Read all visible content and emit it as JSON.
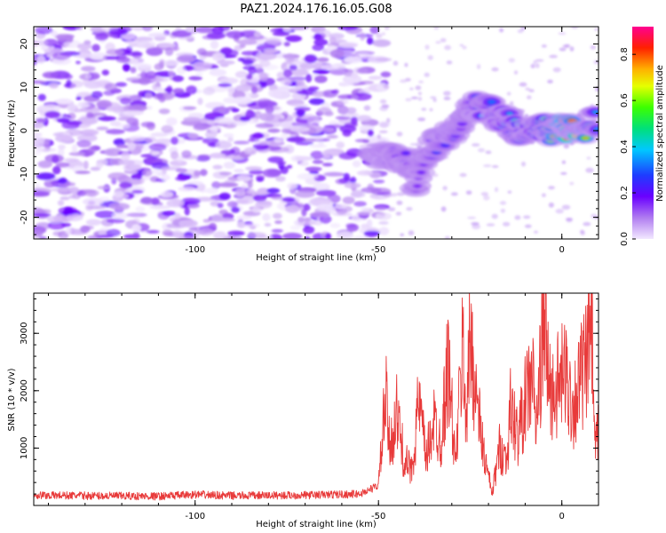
{
  "title": "PAZ1.2024.176.16.05.G08",
  "colors": {
    "snr_line": "#e83a3a",
    "spectrogram_low": "#e6d3ff",
    "spectrogram_mid": "#8a2be2",
    "spectrogram_high": "#ff0000"
  },
  "chart_data": [
    {
      "type": "heatmap",
      "title": "PAZ1.2024.176.16.05.G08",
      "xlabel": "Height of straight line (km)",
      "ylabel": "Frequency (Hz)",
      "xlim": [
        -144,
        10
      ],
      "ylim": [
        -25,
        24
      ],
      "xticks": [
        -100,
        -50,
        0
      ],
      "yticks": [
        -20,
        -10,
        0,
        10,
        20
      ],
      "colorbar": {
        "label": "Normalized spectral amplitude",
        "range": [
          0,
          0.92
        ],
        "ticks": [
          0.0,
          0.2,
          0.4,
          0.6,
          0.8
        ],
        "colormap": "rainbow (white-purple-blue-cyan-green-yellow-red-magenta)"
      },
      "features": {
        "noise_region_x": [
          -144,
          -50
        ],
        "signal_ridge": [
          {
            "x": -50,
            "y": -5,
            "amp": 0.12
          },
          {
            "x": -45,
            "y": -6,
            "amp": 0.2
          },
          {
            "x": -42,
            "y": -8,
            "amp": 0.22
          },
          {
            "x": -40,
            "y": -12,
            "amp": 0.15
          },
          {
            "x": -35,
            "y": -3,
            "amp": 0.25
          },
          {
            "x": -30,
            "y": -1,
            "amp": 0.28
          },
          {
            "x": -28,
            "y": 2,
            "amp": 0.2
          },
          {
            "x": -25,
            "y": 6,
            "amp": 0.25
          },
          {
            "x": -20,
            "y": 5,
            "amp": 0.4
          },
          {
            "x": -15,
            "y": 2,
            "amp": 0.35
          },
          {
            "x": -12,
            "y": 0,
            "amp": 0.5
          },
          {
            "x": -8,
            "y": 1,
            "amp": 0.45
          },
          {
            "x": -3,
            "y": 0,
            "amp": 0.6
          },
          {
            "x": 0,
            "y": 0.5,
            "amp": 0.92
          },
          {
            "x": 5,
            "y": 0,
            "amp": 0.88
          },
          {
            "x": 9,
            "y": 2,
            "amp": 0.4
          }
        ]
      }
    },
    {
      "type": "line",
      "xlabel": "Height of straight line (km)",
      "ylabel": "SNR (10 * v/v)",
      "xlim": [
        -144,
        10
      ],
      "ylim": [
        0,
        3700
      ],
      "xticks": [
        -100,
        -50,
        0
      ],
      "yticks": [
        1000,
        2000,
        3000
      ],
      "series": [
        {
          "x": [
            -144,
            -130,
            -110,
            -100,
            -90,
            -70,
            -55,
            -50,
            -48,
            -47,
            -45,
            -43,
            -41,
            -39,
            -37,
            -35,
            -33,
            -31,
            -29,
            -27,
            -26,
            -25,
            -23,
            -21,
            -19,
            -17,
            -15,
            -14,
            -12,
            -10,
            -8,
            -7,
            -5,
            -3,
            -1,
            1,
            3,
            5,
            7,
            8,
            9,
            10
          ],
          "y": [
            180,
            170,
            160,
            190,
            170,
            180,
            200,
            350,
            1900,
            1000,
            1600,
            800,
            600,
            1800,
            800,
            1500,
            1100,
            2500,
            700,
            2800,
            1500,
            3000,
            1700,
            800,
            200,
            1000,
            800,
            1700,
            1200,
            1800,
            2300,
            1300,
            3200,
            1900,
            2100,
            2300,
            1700,
            2200,
            2500,
            3500,
            900,
            1300
          ]
        }
      ]
    }
  ]
}
